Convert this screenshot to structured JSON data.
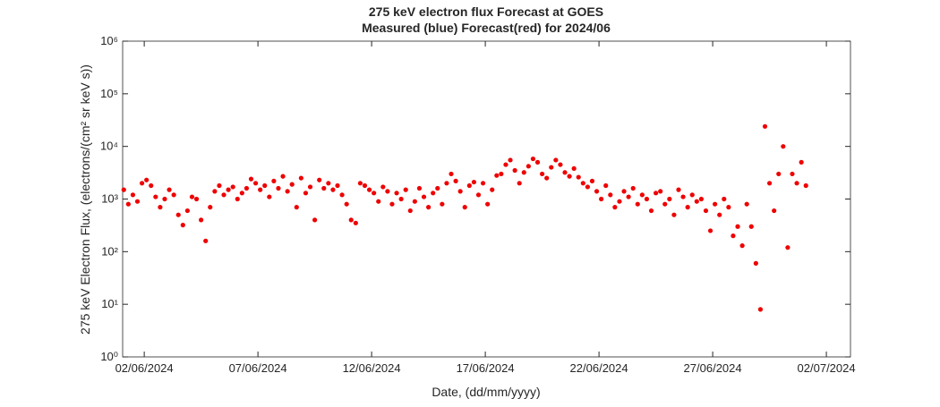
{
  "chart_data": {
    "type": "scatter",
    "title": "275 keV electron flux Forecast at GOES",
    "subtitle": "Measured (blue) Forecast(red) for 2024/06",
    "x_label": "Date, (dd/mm/yyyy)",
    "y_label": "275 keV Electron Flux, (electrons/(cm² sr keV s))",
    "color": "#ee0000",
    "log_y": true,
    "xlim": [
      1.05,
      33.06
    ],
    "ylim": [
      1,
      1000000
    ],
    "xticks": [
      {
        "value": 2,
        "label": "02/06/2024"
      },
      {
        "value": 7,
        "label": "07/06/2024"
      },
      {
        "value": 12,
        "label": "12/06/2024"
      },
      {
        "value": 17,
        "label": "17/06/2024"
      },
      {
        "value": 22,
        "label": "22/06/2024"
      },
      {
        "value": 27,
        "label": "27/06/2024"
      },
      {
        "value": 32,
        "label": "02/07/2024"
      }
    ],
    "yticks": [
      {
        "value": 1,
        "label": "10⁰"
      },
      {
        "value": 10,
        "label": "10¹"
      },
      {
        "value": 100,
        "label": "10²"
      },
      {
        "value": 1000,
        "label": "10³"
      },
      {
        "value": 10000,
        "label": "10⁴"
      },
      {
        "value": 100000,
        "label": "10⁵"
      },
      {
        "value": 1000000,
        "label": "10⁶"
      }
    ],
    "x": [
      1.1,
      1.3,
      1.5,
      1.7,
      1.9,
      2.1,
      2.3,
      2.5,
      2.7,
      2.9,
      3.1,
      3.3,
      3.5,
      3.7,
      3.9,
      4.1,
      4.3,
      4.5,
      4.7,
      4.9,
      5.1,
      5.3,
      5.5,
      5.7,
      5.9,
      6.1,
      6.3,
      6.5,
      6.7,
      6.9,
      7.1,
      7.3,
      7.5,
      7.7,
      7.9,
      8.1,
      8.3,
      8.5,
      8.7,
      8.9,
      9.1,
      9.3,
      9.5,
      9.7,
      9.9,
      10.1,
      10.3,
      10.5,
      10.7,
      10.9,
      11.1,
      11.3,
      11.5,
      11.7,
      11.9,
      12.1,
      12.3,
      12.5,
      12.7,
      12.9,
      13.1,
      13.3,
      13.5,
      13.7,
      13.9,
      14.1,
      14.3,
      14.5,
      14.7,
      14.9,
      15.1,
      15.3,
      15.5,
      15.7,
      15.9,
      16.1,
      16.3,
      16.5,
      16.7,
      16.9,
      17.1,
      17.3,
      17.5,
      17.7,
      17.9,
      18.1,
      18.3,
      18.5,
      18.7,
      18.9,
      19.1,
      19.3,
      19.5,
      19.7,
      19.9,
      20.1,
      20.3,
      20.5,
      20.7,
      20.9,
      21.1,
      21.3,
      21.5,
      21.7,
      21.9,
      22.1,
      22.3,
      22.5,
      22.7,
      22.9,
      23.1,
      23.3,
      23.5,
      23.7,
      23.9,
      24.1,
      24.3,
      24.5,
      24.7,
      24.9,
      25.1,
      25.3,
      25.5,
      25.7,
      25.9,
      26.1,
      26.3,
      26.5,
      26.7,
      26.9,
      27.1,
      27.3,
      27.5,
      27.7,
      27.9,
      28.1,
      28.3,
      28.5,
      28.7,
      28.9,
      29.1,
      29.3,
      29.5,
      29.7,
      29.9,
      30.1,
      30.3,
      30.5,
      30.7,
      30.9,
      31.1
    ],
    "values": [
      1500,
      800,
      1200,
      900,
      2000,
      2300,
      1800,
      1100,
      700,
      1000,
      1500,
      1200,
      500,
      320,
      600,
      1100,
      1000,
      400,
      160,
      700,
      1400,
      1800,
      1200,
      1500,
      1700,
      1000,
      1300,
      1600,
      2400,
      2000,
      1500,
      1800,
      1100,
      2200,
      1600,
      2700,
      1400,
      1900,
      700,
      2500,
      1300,
      1700,
      400,
      2300,
      1600,
      2000,
      1500,
      1800,
      1200,
      800,
      400,
      350,
      2000,
      1800,
      1500,
      1300,
      900,
      1700,
      1400,
      800,
      1300,
      1000,
      1500,
      600,
      900,
      1600,
      1100,
      700,
      1300,
      1600,
      800,
      2000,
      3000,
      2200,
      1400,
      700,
      1800,
      2100,
      1200,
      2000,
      800,
      1500,
      2800,
      3000,
      4500,
      5500,
      3500,
      2000,
      3200,
      4200,
      5800,
      5000,
      3000,
      2500,
      4000,
      5500,
      4500,
      3200,
      2700,
      3800,
      2600,
      2000,
      1700,
      2200,
      1400,
      1000,
      1800,
      1200,
      700,
      900,
      1400,
      1100,
      1600,
      800,
      1200,
      1000,
      600,
      1300,
      1400,
      800,
      1000,
      500,
      1500,
      1100,
      700,
      1200,
      900,
      1000,
      600,
      250,
      800,
      500,
      1000,
      700,
      200,
      300,
      130,
      800,
      300,
      60,
      8,
      24000,
      2000,
      600,
      3000,
      10000,
      120,
      3000,
      2000,
      5000,
      1800
    ]
  }
}
